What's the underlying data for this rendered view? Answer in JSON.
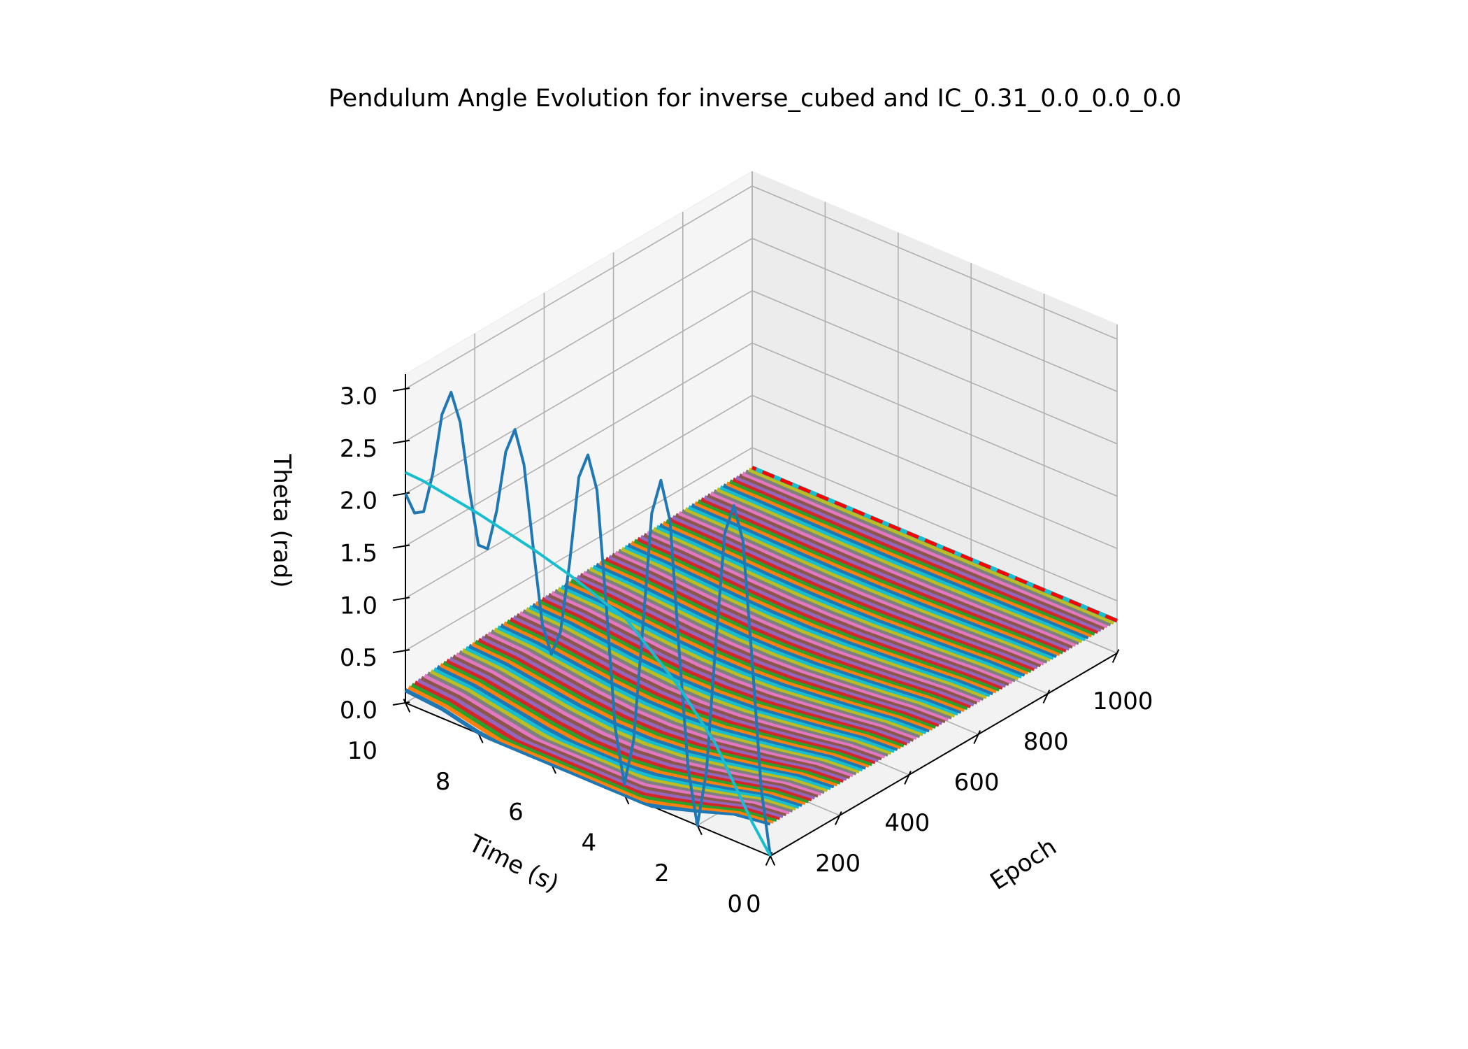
{
  "chart_data": {
    "type": "line",
    "projection": "3d",
    "title": "Pendulum Angle Evolution for inverse_cubed and IC_0.31_0.0_0.0_0.0",
    "xlabel": "Epoch",
    "ylabel": "Time (s)",
    "zlabel": "Theta (rad)",
    "xlim": [
      0,
      1000
    ],
    "ylim": [
      0,
      10
    ],
    "zlim": [
      0,
      3.14
    ],
    "x_ticks": [
      "0",
      "200",
      "400",
      "600",
      "800",
      "1000"
    ],
    "y_ticks": [
      "0",
      "2",
      "4",
      "6",
      "8",
      "10"
    ],
    "z_ticks": [
      "0.0",
      "0.5",
      "1.0",
      "1.5",
      "2.0",
      "2.5",
      "3.0"
    ],
    "grid": true,
    "series": [
      {
        "color": "#1f77b4",
        "epoch": 0,
        "time": [
          0,
          0.25,
          0.5,
          0.75,
          1.0,
          1.25,
          1.5,
          1.75,
          2.0,
          2.25,
          2.5,
          2.75,
          3.0,
          3.25,
          3.5,
          3.75,
          4.0,
          4.25,
          4.5,
          4.75,
          5.0,
          5.25,
          5.5,
          5.75,
          6.0,
          6.25,
          6.5,
          6.75,
          7.0,
          7.25,
          7.5,
          7.75,
          8.0,
          8.25,
          8.5,
          8.75,
          9.0,
          9.25,
          9.5,
          9.75,
          10.0
        ],
        "theta": [
          0.0,
          0.6,
          1.8,
          2.9,
          3.2,
          2.9,
          1.8,
          0.55,
          0.0,
          0.5,
          1.6,
          2.8,
          3.15,
          2.8,
          1.65,
          0.55,
          0.1,
          0.6,
          1.75,
          2.8,
          3.1,
          2.85,
          2.0,
          1.3,
          1.05,
          1.3,
          2.0,
          2.75,
          3.05,
          2.8,
          2.2,
          1.8,
          1.8,
          2.3,
          2.9,
          3.15,
          2.9,
          2.3,
          1.9,
          1.85,
          2.0
        ]
      },
      {
        "color": "#17becf",
        "epoch": 0,
        "time": [
          0,
          0.5,
          1.0,
          1.5,
          2.0,
          2.5,
          3.0,
          3.5,
          4.0,
          4.5,
          5.0,
          5.5,
          6.0,
          6.5,
          7.0,
          7.5,
          8.0,
          8.5,
          9.0,
          9.5,
          10.0
        ],
        "theta": [
          0.0,
          0.25,
          0.55,
          0.85,
          1.05,
          1.25,
          1.4,
          1.55,
          1.7,
          1.75,
          1.82,
          1.88,
          1.93,
          1.98,
          2.02,
          2.06,
          2.1,
          2.13,
          2.16,
          2.19,
          2.2
        ]
      },
      {
        "color": "#ff0000",
        "style": "dashed",
        "epoch": 1000,
        "time": [
          0,
          10
        ],
        "theta": [
          0.31,
          0.31
        ]
      }
    ],
    "surface": {
      "description": "one trace per epoch, 0–1000",
      "epoch_range": [
        0,
        1000
      ],
      "time": [
        0,
        1,
        2,
        3,
        4,
        5,
        6,
        7,
        8,
        9,
        10
      ],
      "theta_epoch0": [
        0.31,
        0.26,
        0.14,
        0.03,
        -0.07,
        -0.12,
        -0.12,
        -0.07,
        0.01,
        0.09,
        0.12
      ],
      "theta_epoch1000": [
        0.31,
        0.31,
        0.31,
        0.31,
        0.31,
        0.31,
        0.31,
        0.31,
        0.31,
        0.31,
        0.31
      ]
    }
  }
}
